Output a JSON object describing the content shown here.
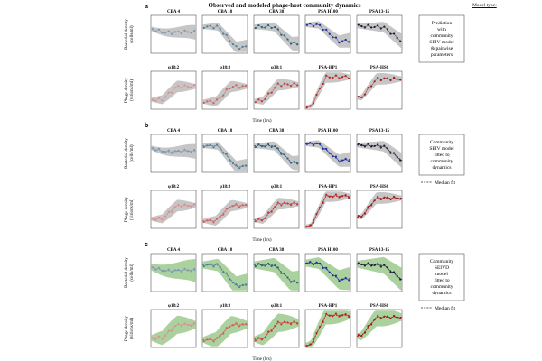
{
  "figure": {
    "title": "Observed and modeled phage-host community dynamics",
    "model_type_label": "Model type:",
    "time_label": "Time (hrs)",
    "bacteria_ylabel": [
      "Bacterial density",
      "(cells/ml)"
    ],
    "phage_ylabel": [
      "Phage density",
      "(virions/ml)"
    ],
    "bacteria_titles": [
      "CBA 4",
      "CBA 18",
      "CBA 38",
      "PSA H100",
      "PSA 13-15"
    ],
    "phage_titles": [
      "φ18:2",
      "φ18:3",
      "φ38:1",
      "PSA-HP1",
      "PSA-HS6"
    ],
    "bacteria_colors": [
      "#7b97b3",
      "#4f7f9d",
      "#2a5e7c",
      "#1a2f9e",
      "#1c1c38"
    ],
    "phage_colors": [
      "#e08f8f",
      "#d46060",
      "#c83a3a",
      "#b82020",
      "#9d1a1a"
    ],
    "panels": [
      {
        "letter": "a",
        "description": [
          "Prediction",
          "with",
          "community",
          "SEIV model",
          "& pairwise",
          "parameters"
        ],
        "band_color": "#bcbcbc",
        "show_median": false,
        "median_label": ""
      },
      {
        "letter": "b",
        "description": [
          "Community",
          "SEIV model",
          "fitted to",
          "community",
          "dynamics"
        ],
        "band_color": "#bcbcbc",
        "show_median": true,
        "median_label": "Median fit"
      },
      {
        "letter": "c",
        "description": [
          "Community",
          "SEIVD",
          "model",
          "fitted to",
          "community",
          "dynamics"
        ],
        "band_color": "#9cc98e",
        "show_median": true,
        "median_label": "Median fit"
      }
    ]
  }
}
